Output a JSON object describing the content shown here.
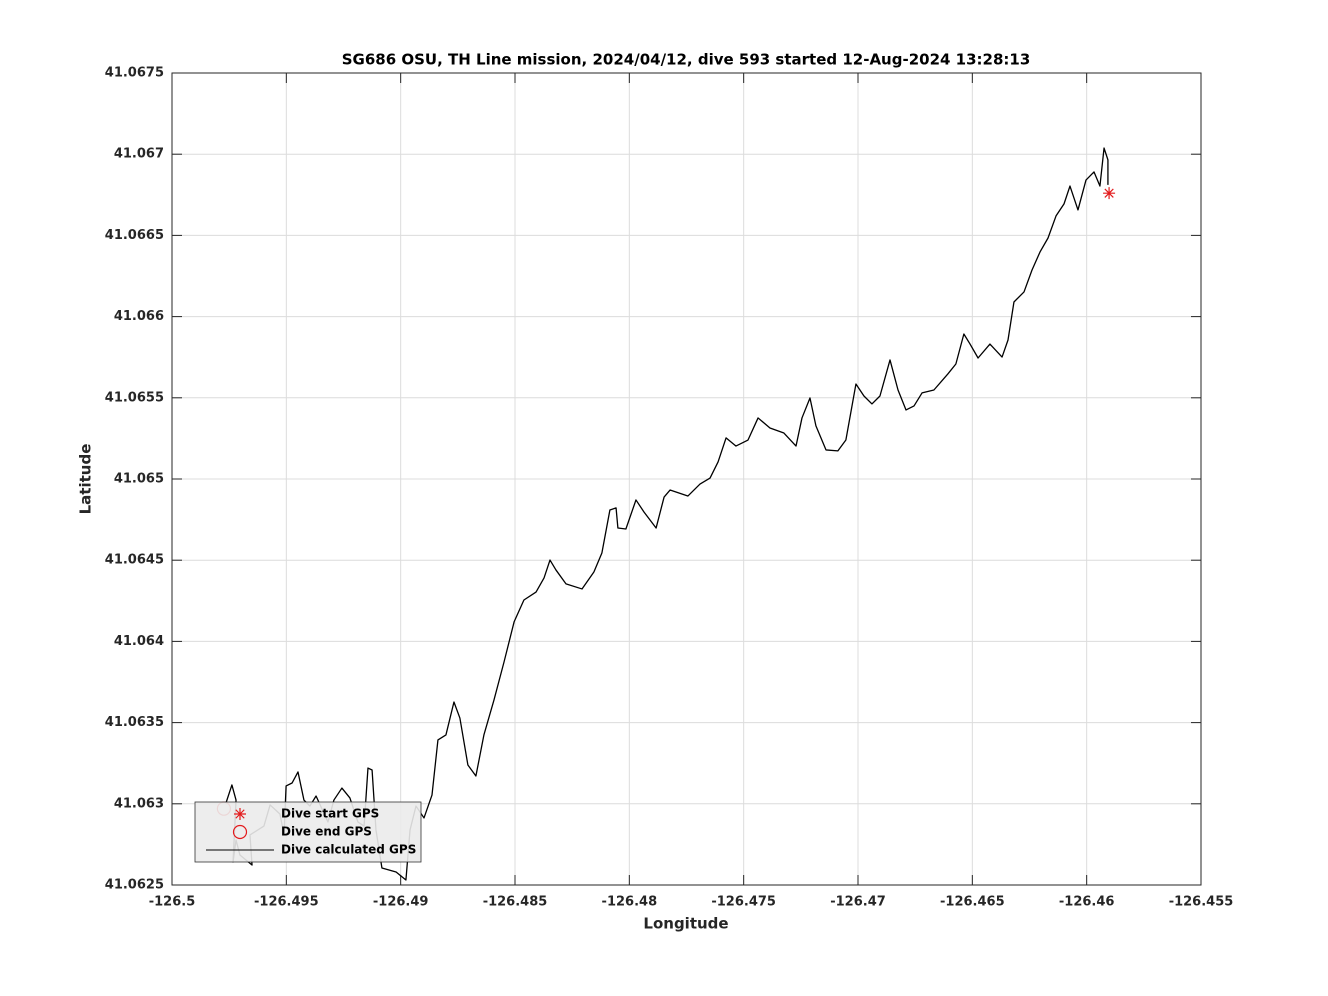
{
  "chart_data": {
    "type": "line",
    "title": "SG686 OSU, TH Line mission, 2024/04/12, dive 593 started 12-Aug-2024 13:28:13",
    "x_label": "Longitude",
    "y_label": "Latitude",
    "xlim": [
      -126.5,
      -126.455
    ],
    "ylim": [
      41.0625,
      41.0675
    ],
    "xticks": [
      -126.5,
      -126.495,
      -126.49,
      -126.485,
      -126.48,
      -126.475,
      -126.47,
      -126.465,
      -126.46,
      -126.455
    ],
    "yticks": [
      41.0625,
      41.063,
      41.0635,
      41.064,
      41.0645,
      41.065,
      41.0655,
      41.066,
      41.0665,
      41.067,
      41.0675
    ],
    "grid": true,
    "legend": "southwest",
    "series": [
      {
        "name": "Dive start GPS",
        "color": "#e31a1c",
        "marker": "asterisk",
        "x": [
          -126.45902
        ],
        "values": [
          41.06676
        ]
      },
      {
        "name": "Dive end GPS",
        "color": "#e31a1c",
        "marker": "circle",
        "x": [
          -126.49773
        ],
        "values": [
          41.06297
        ]
      },
      {
        "name": "Dive calculated GPS",
        "color": "#000000",
        "marker": "none",
        "x": [
          -126.49764,
          -126.49738,
          -126.4972,
          -126.49733,
          -126.4972,
          -126.49703,
          -126.4965,
          -126.49659,
          -126.49598,
          -126.49571,
          -126.49528,
          -126.4951,
          -126.49501,
          -126.49475,
          -126.49449,
          -126.49423,
          -126.49397,
          -126.4937,
          -126.49318,
          -126.49292,
          -126.49257,
          -126.49222,
          -126.49187,
          -126.4916,
          -126.49143,
          -126.49125,
          -126.49108,
          -126.49082,
          -126.4902,
          -126.48977,
          -126.48959,
          -126.48933,
          -126.48898,
          -126.48863,
          -126.48837,
          -126.48802,
          -126.48767,
          -126.48741,
          -126.48706,
          -126.48671,
          -126.48636,
          -126.48592,
          -126.48548,
          -126.48504,
          -126.48461,
          -126.48408,
          -126.48373,
          -126.48347,
          -126.48321,
          -126.48277,
          -126.48207,
          -126.48155,
          -126.4812,
          -126.48085,
          -126.48058,
          -126.4805,
          -126.48015,
          -126.47971,
          -126.47936,
          -126.47883,
          -126.47848,
          -126.47822,
          -126.47744,
          -126.47691,
          -126.47647,
          -126.47612,
          -126.47577,
          -126.47534,
          -126.47481,
          -126.47437,
          -126.47385,
          -126.47324,
          -126.47271,
          -126.47245,
          -126.4721,
          -126.47184,
          -126.4714,
          -126.47088,
          -126.47053,
          -126.47009,
          -126.46974,
          -126.46939,
          -126.46904,
          -126.4686,
          -126.46825,
          -126.4679,
          -126.46755,
          -126.4672,
          -126.46668,
          -126.46607,
          -126.46572,
          -126.46537,
          -126.4651,
          -126.46475,
          -126.46423,
          -126.4637,
          -126.46344,
          -126.46318,
          -126.46274,
          -126.46239,
          -126.46204,
          -126.46169,
          -126.46134,
          -126.46099,
          -126.46073,
          -126.46038,
          -126.46003,
          -126.45968,
          -126.45942,
          -126.45924,
          -126.45907,
          -126.45907
        ],
        "values": [
          41.063005,
          41.063116,
          41.063023,
          41.062642,
          41.062777,
          41.062685,
          41.062623,
          41.062808,
          41.062863,
          41.062993,
          41.062937,
          41.062808,
          41.06311,
          41.063128,
          41.063196,
          41.063023,
          41.062986,
          41.063048,
          41.062888,
          41.063023,
          41.063097,
          41.063036,
          41.062888,
          41.062863,
          41.06322,
          41.063208,
          41.062839,
          41.062605,
          41.06258,
          41.062531,
          41.062839,
          41.062986,
          41.062913,
          41.063054,
          41.063393,
          41.063424,
          41.063627,
          41.063528,
          41.063239,
          41.063171,
          41.063424,
          41.063639,
          41.063873,
          41.06412,
          41.064255,
          41.064304,
          41.064391,
          41.064501,
          41.06444,
          41.064354,
          41.064323,
          41.064427,
          41.064544,
          41.064809,
          41.064822,
          41.064698,
          41.064692,
          41.064871,
          41.064797,
          41.064698,
          41.064889,
          41.064932,
          41.064895,
          41.064969,
          41.065006,
          41.065105,
          41.065253,
          41.065203,
          41.06524,
          41.065376,
          41.065314,
          41.065283,
          41.065203,
          41.065376,
          41.065499,
          41.065327,
          41.065179,
          41.065173,
          41.06524,
          41.065585,
          41.065511,
          41.065462,
          41.065511,
          41.065733,
          41.065548,
          41.065425,
          41.06545,
          41.06553,
          41.065548,
          41.065647,
          41.065708,
          41.065893,
          41.065831,
          41.065745,
          41.065831,
          41.065751,
          41.065856,
          41.06609,
          41.066152,
          41.066287,
          41.066398,
          41.066484,
          41.06662,
          41.066694,
          41.066804,
          41.066657,
          41.066841,
          41.066891,
          41.066804,
          41.067038,
          41.066965,
          41.066811
        ]
      }
    ]
  }
}
